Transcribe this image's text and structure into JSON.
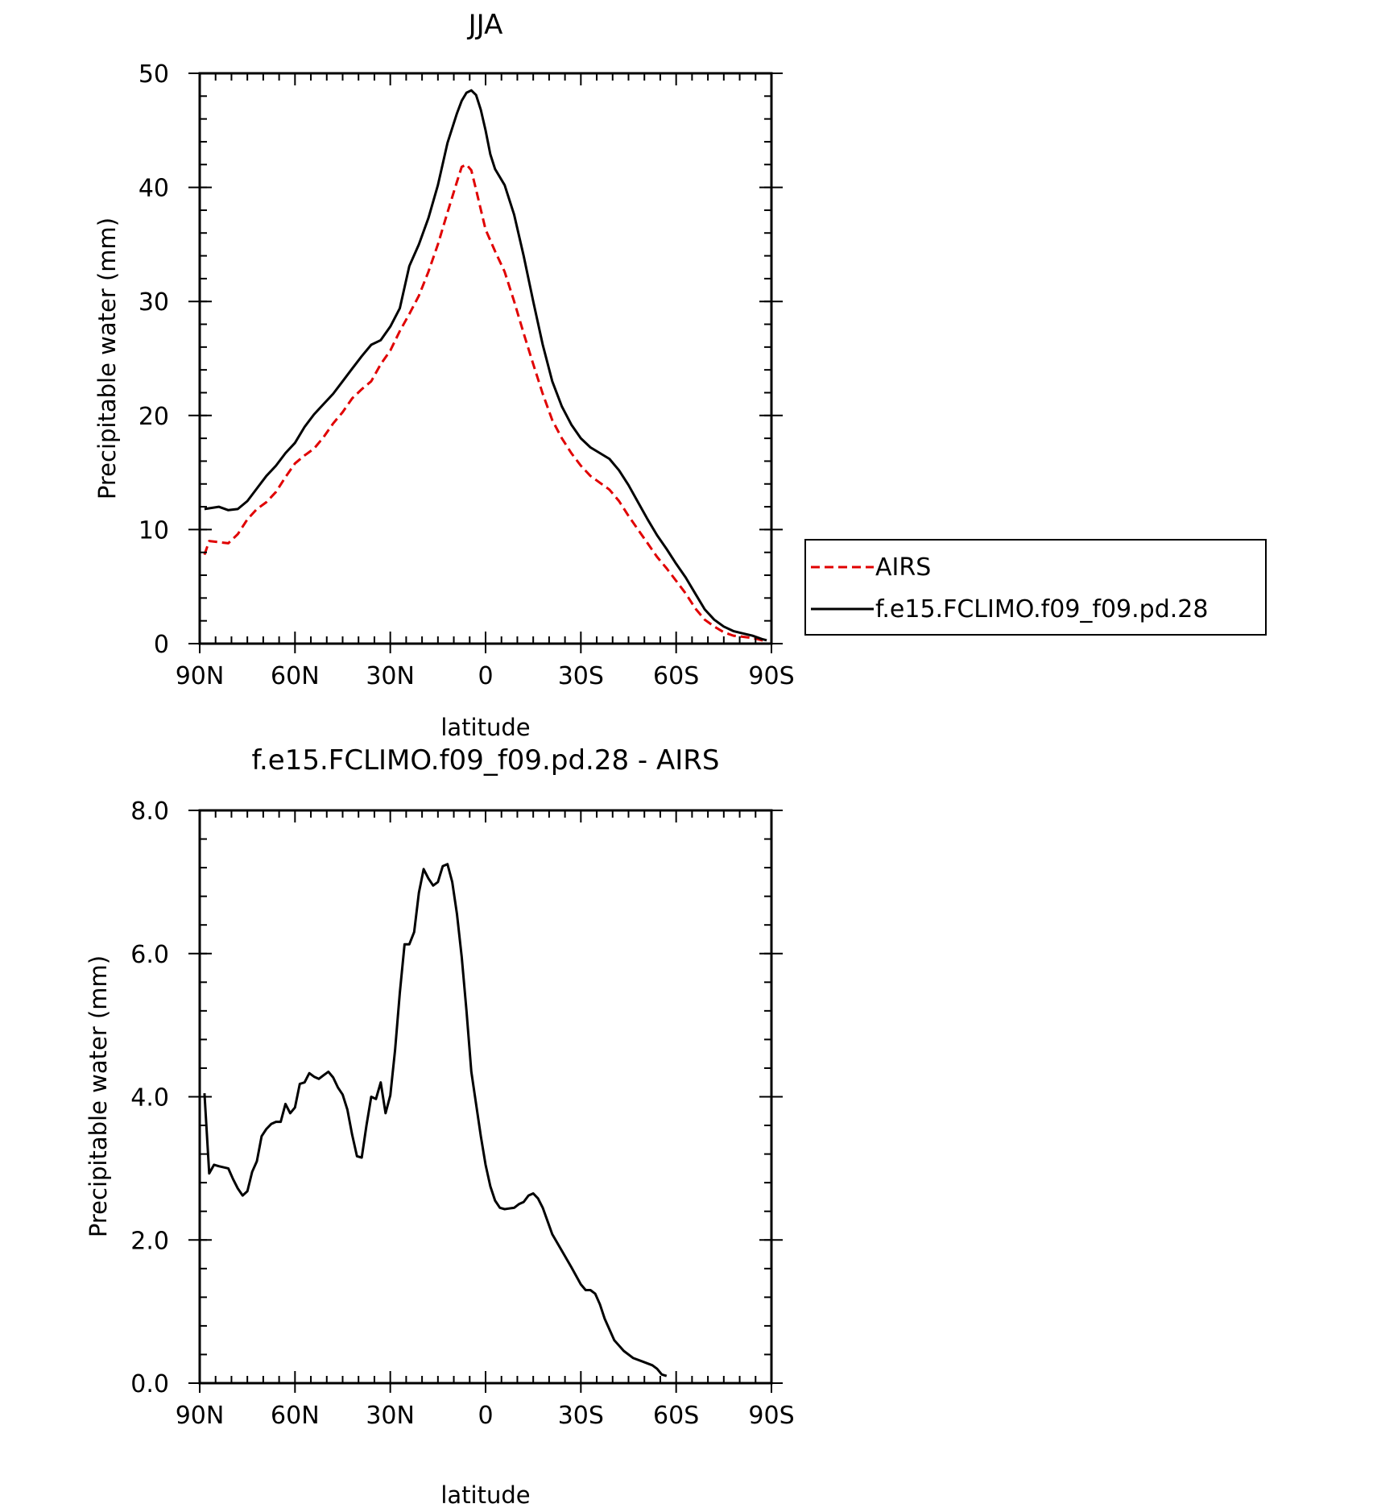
{
  "chart_data": [
    {
      "type": "line",
      "title": "JJA",
      "xlabel": "latitude",
      "ylabel": "Precipitable water (mm)",
      "xlim": [
        90,
        -90
      ],
      "ylim": [
        0,
        50
      ],
      "x_ticks": [
        {
          "value": 90,
          "label": "90N"
        },
        {
          "value": 60,
          "label": "60N"
        },
        {
          "value": 30,
          "label": "30N"
        },
        {
          "value": 0,
          "label": "0"
        },
        {
          "value": -30,
          "label": "30S"
        },
        {
          "value": -60,
          "label": "60S"
        },
        {
          "value": -90,
          "label": "90S"
        }
      ],
      "y_ticks": [
        {
          "value": 0,
          "label": "0"
        },
        {
          "value": 10,
          "label": "10"
        },
        {
          "value": 20,
          "label": "20"
        },
        {
          "value": 30,
          "label": "30"
        },
        {
          "value": 40,
          "label": "40"
        },
        {
          "value": 50,
          "label": "50"
        }
      ],
      "legend_position": "right",
      "series": [
        {
          "name": "AIRS",
          "color": "#e00000",
          "dash": "dashed",
          "points": [
            [
              88.5,
              7.8
            ],
            [
              87,
              9.0
            ],
            [
              84,
              8.9
            ],
            [
              81,
              8.8
            ],
            [
              78,
              9.6
            ],
            [
              75,
              10.9
            ],
            [
              72,
              11.8
            ],
            [
              69,
              12.4
            ],
            [
              66,
              13.3
            ],
            [
              63,
              14.6
            ],
            [
              60,
              15.8
            ],
            [
              57,
              16.5
            ],
            [
              54,
              17.1
            ],
            [
              51,
              18.1
            ],
            [
              48,
              19.3
            ],
            [
              45,
              20.3
            ],
            [
              42,
              21.5
            ],
            [
              39,
              22.3
            ],
            [
              36,
              23.0
            ],
            [
              33,
              24.5
            ],
            [
              30,
              25.7
            ],
            [
              27,
              27.4
            ],
            [
              24,
              28.9
            ],
            [
              21,
              30.5
            ],
            [
              18,
              32.6
            ],
            [
              15,
              35.0
            ],
            [
              12,
              37.8
            ],
            [
              9,
              40.5
            ],
            [
              7.5,
              41.8
            ],
            [
              6,
              42.0
            ],
            [
              4.5,
              41.5
            ],
            [
              3,
              39.8
            ],
            [
              0,
              36.3
            ],
            [
              -3,
              34.4
            ],
            [
              -6,
              32.6
            ],
            [
              -9,
              30.0
            ],
            [
              -12,
              27.2
            ],
            [
              -15,
              24.5
            ],
            [
              -18,
              21.9
            ],
            [
              -21,
              19.6
            ],
            [
              -24,
              18.0
            ],
            [
              -27,
              16.7
            ],
            [
              -30,
              15.6
            ],
            [
              -33,
              14.7
            ],
            [
              -36,
              14.1
            ],
            [
              -39,
              13.5
            ],
            [
              -42,
              12.5
            ],
            [
              -45,
              11.2
            ],
            [
              -48,
              10.0
            ],
            [
              -51,
              8.8
            ],
            [
              -54,
              7.6
            ],
            [
              -57,
              6.6
            ],
            [
              -60,
              5.5
            ],
            [
              -63,
              4.4
            ],
            [
              -66,
              3.1
            ],
            [
              -69,
              2.1
            ],
            [
              -72,
              1.5
            ],
            [
              -75,
              1.0
            ],
            [
              -78,
              0.7
            ],
            [
              -81,
              0.6
            ],
            [
              -84,
              0.5
            ],
            [
              -87,
              0.3
            ],
            [
              -88.5,
              0.2
            ]
          ]
        },
        {
          "name": "f.e15.FCLIMO.f09_f09.pd.28",
          "color": "#000000",
          "dash": "solid",
          "points": [
            [
              88.5,
              11.8
            ],
            [
              84,
              12.0
            ],
            [
              81,
              11.7
            ],
            [
              78,
              11.8
            ],
            [
              75,
              12.5
            ],
            [
              72,
              13.6
            ],
            [
              69,
              14.7
            ],
            [
              66,
              15.6
            ],
            [
              63,
              16.7
            ],
            [
              60,
              17.6
            ],
            [
              57,
              19.0
            ],
            [
              54,
              20.1
            ],
            [
              51,
              21.0
            ],
            [
              48,
              21.9
            ],
            [
              45,
              23.0
            ],
            [
              42,
              24.1
            ],
            [
              39,
              25.2
            ],
            [
              36,
              26.2
            ],
            [
              33,
              26.6
            ],
            [
              30,
              27.8
            ],
            [
              27,
              29.4
            ],
            [
              24,
              33.1
            ],
            [
              21,
              35.0
            ],
            [
              18,
              37.3
            ],
            [
              15,
              40.2
            ],
            [
              12,
              43.9
            ],
            [
              9,
              46.5
            ],
            [
              7.5,
              47.6
            ],
            [
              6,
              48.3
            ],
            [
              4.5,
              48.5
            ],
            [
              3,
              48.1
            ],
            [
              1.5,
              46.8
            ],
            [
              0,
              45.0
            ],
            [
              -1.5,
              42.9
            ],
            [
              -3,
              41.6
            ],
            [
              -6,
              40.2
            ],
            [
              -9,
              37.6
            ],
            [
              -12,
              34.0
            ],
            [
              -15,
              30.0
            ],
            [
              -18,
              26.2
            ],
            [
              -21,
              23.0
            ],
            [
              -24,
              20.8
            ],
            [
              -27,
              19.2
            ],
            [
              -30,
              18.0
            ],
            [
              -33,
              17.2
            ],
            [
              -36,
              16.7
            ],
            [
              -39,
              16.2
            ],
            [
              -42,
              15.2
            ],
            [
              -45,
              13.9
            ],
            [
              -48,
              12.4
            ],
            [
              -51,
              10.9
            ],
            [
              -54,
              9.5
            ],
            [
              -57,
              8.3
            ],
            [
              -60,
              7.0
            ],
            [
              -63,
              5.8
            ],
            [
              -66,
              4.4
            ],
            [
              -69,
              3.0
            ],
            [
              -72,
              2.1
            ],
            [
              -75,
              1.5
            ],
            [
              -78,
              1.1
            ],
            [
              -81,
              0.9
            ],
            [
              -84,
              0.7
            ],
            [
              -87,
              0.4
            ],
            [
              -88.5,
              0.3
            ]
          ]
        }
      ]
    },
    {
      "type": "line",
      "title": "f.e15.FCLIMO.f09_f09.pd.28 - AIRS",
      "xlabel": "latitude",
      "ylabel": "Precipitable water (mm)",
      "xlim": [
        90,
        -90
      ],
      "ylim": [
        0,
        8
      ],
      "x_ticks": [
        {
          "value": 90,
          "label": "90N"
        },
        {
          "value": 60,
          "label": "60N"
        },
        {
          "value": 30,
          "label": "30N"
        },
        {
          "value": 0,
          "label": "0"
        },
        {
          "value": -30,
          "label": "30S"
        },
        {
          "value": -60,
          "label": "60S"
        },
        {
          "value": -90,
          "label": "90S"
        }
      ],
      "y_ticks": [
        {
          "value": 0,
          "label": "0.0"
        },
        {
          "value": 2,
          "label": "2.0"
        },
        {
          "value": 4,
          "label": "4.0"
        },
        {
          "value": 6,
          "label": "6.0"
        },
        {
          "value": 8,
          "label": "8.0"
        }
      ],
      "series": [
        {
          "color": "#000000",
          "dash": "solid",
          "points": [
            [
              88.5,
              4.05
            ],
            [
              87,
              2.93
            ],
            [
              85.5,
              3.05
            ],
            [
              84,
              3.03
            ],
            [
              81,
              3.0
            ],
            [
              79.5,
              2.85
            ],
            [
              78,
              2.72
            ],
            [
              76.5,
              2.62
            ],
            [
              75,
              2.68
            ],
            [
              73.5,
              2.95
            ],
            [
              72,
              3.1
            ],
            [
              70.5,
              3.45
            ],
            [
              69,
              3.55
            ],
            [
              67.5,
              3.62
            ],
            [
              66,
              3.65
            ],
            [
              64.5,
              3.65
            ],
            [
              63,
              3.9
            ],
            [
              61.5,
              3.77
            ],
            [
              60,
              3.85
            ],
            [
              58.5,
              4.18
            ],
            [
              57,
              4.2
            ],
            [
              55.5,
              4.33
            ],
            [
              54,
              4.28
            ],
            [
              52.5,
              4.25
            ],
            [
              51,
              4.3
            ],
            [
              49.5,
              4.35
            ],
            [
              48,
              4.27
            ],
            [
              46.5,
              4.13
            ],
            [
              45,
              4.03
            ],
            [
              43.5,
              3.82
            ],
            [
              42,
              3.47
            ],
            [
              40.5,
              3.17
            ],
            [
              39,
              3.15
            ],
            [
              37.5,
              3.6
            ],
            [
              36,
              4.0
            ],
            [
              34.5,
              3.97
            ],
            [
              33,
              4.2
            ],
            [
              31.5,
              3.77
            ],
            [
              30,
              4.02
            ],
            [
              28.5,
              4.65
            ],
            [
              27,
              5.45
            ],
            [
              25.5,
              6.13
            ],
            [
              24,
              6.13
            ],
            [
              22.5,
              6.3
            ],
            [
              21,
              6.85
            ],
            [
              19.5,
              7.18
            ],
            [
              18,
              7.05
            ],
            [
              16.5,
              6.95
            ],
            [
              15,
              7.0
            ],
            [
              13.5,
              7.22
            ],
            [
              12,
              7.25
            ],
            [
              10.5,
              7.0
            ],
            [
              9,
              6.55
            ],
            [
              7.5,
              5.95
            ],
            [
              6,
              5.2
            ],
            [
              4.5,
              4.35
            ],
            [
              3,
              3.9
            ],
            [
              1.5,
              3.45
            ],
            [
              0,
              3.05
            ],
            [
              -1.5,
              2.75
            ],
            [
              -3,
              2.55
            ],
            [
              -4.5,
              2.45
            ],
            [
              -6,
              2.43
            ],
            [
              -9,
              2.45
            ],
            [
              -10.5,
              2.5
            ],
            [
              -12,
              2.53
            ],
            [
              -13.5,
              2.62
            ],
            [
              -15,
              2.65
            ],
            [
              -16.5,
              2.58
            ],
            [
              -18,
              2.45
            ],
            [
              -21,
              2.08
            ],
            [
              -24,
              1.85
            ],
            [
              -27,
              1.62
            ],
            [
              -30,
              1.38
            ],
            [
              -31.5,
              1.3
            ],
            [
              -33,
              1.3
            ],
            [
              -34.5,
              1.25
            ],
            [
              -36,
              1.1
            ],
            [
              -37.5,
              0.9
            ],
            [
              -40.5,
              0.6
            ],
            [
              -43.5,
              0.45
            ],
            [
              -46.5,
              0.35
            ],
            [
              -49.5,
              0.3
            ],
            [
              -52.5,
              0.25
            ],
            [
              -54,
              0.2
            ],
            [
              -55.5,
              0.12
            ],
            [
              -57,
              0.1
            ]
          ]
        }
      ]
    }
  ]
}
